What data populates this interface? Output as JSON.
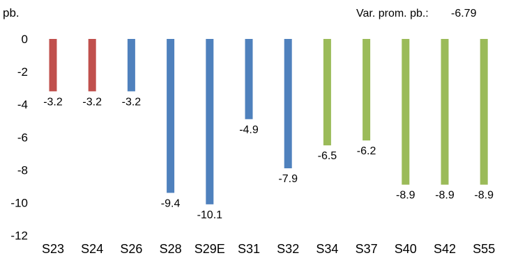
{
  "chart_data": {
    "type": "bar",
    "title": "",
    "xlabel": "",
    "ylabel": "pb.",
    "categories": [
      "S23",
      "S24",
      "S26",
      "S28",
      "S29E",
      "S31",
      "S32",
      "S34",
      "S37",
      "S40",
      "S42",
      "S55"
    ],
    "values": [
      -3.2,
      -3.2,
      -3.2,
      -9.4,
      -10.1,
      -4.9,
      -7.9,
      -6.5,
      -6.2,
      -8.9,
      -8.9,
      -8.9
    ],
    "data_labels": [
      "-3.2",
      "-3.2",
      "-3.2",
      "-9.4",
      "-10.1",
      "-4.9",
      "-7.9",
      "-6.5",
      "-6.2",
      "-8.9",
      "-8.9",
      "-8.9"
    ],
    "bar_colors": [
      "#c0504d",
      "#c0504d",
      "#4f81bd",
      "#4f81bd",
      "#4f81bd",
      "#4f81bd",
      "#4f81bd",
      "#9bbb59",
      "#9bbb59",
      "#9bbb59",
      "#9bbb59",
      "#9bbb59"
    ],
    "ylim": [
      -12,
      0
    ],
    "yticks": [
      0,
      -2,
      -4,
      -6,
      -8,
      -10,
      -12
    ],
    "grid": false,
    "legend": "none",
    "annotation": {
      "label": "Var. prom. pb.:",
      "value": "-6.79"
    }
  }
}
